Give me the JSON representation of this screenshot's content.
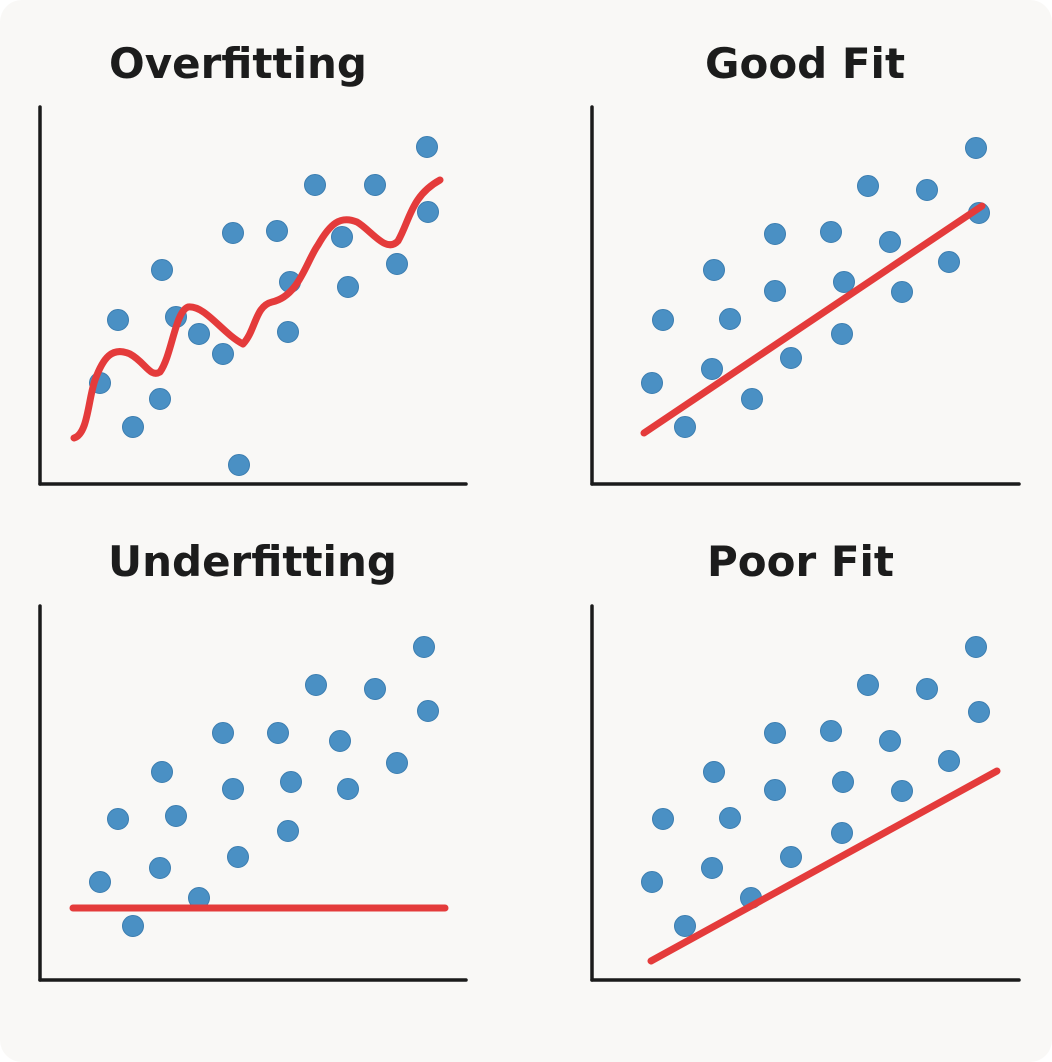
{
  "colors": {
    "background": "#f9f8f6",
    "axis": "#1b1b1b",
    "point_fill": "#4a90c4",
    "point_stroke": "#3b7db0",
    "fit_line": "#e43b3b"
  },
  "chart_data": [
    {
      "type": "scatter",
      "title": "Overfitting",
      "fit": "wiggly",
      "points": [
        [
          60,
          276
        ],
        [
          93,
          320
        ],
        [
          78,
          213
        ],
        [
          122,
          163
        ],
        [
          159,
          227
        ],
        [
          120,
          292
        ],
        [
          183,
          247
        ],
        [
          136,
          210
        ],
        [
          199,
          358
        ],
        [
          193,
          126
        ],
        [
          237,
          124
        ],
        [
          250,
          175
        ],
        [
          248,
          225
        ],
        [
          275,
          78
        ],
        [
          302,
          130
        ],
        [
          308,
          180
        ],
        [
          335,
          78
        ],
        [
          387,
          40
        ],
        [
          357,
          157
        ],
        [
          388,
          105
        ]
      ]
    },
    {
      "type": "scatter",
      "title": "Good Fit",
      "fit": "linear",
      "points": [
        [
          60,
          276
        ],
        [
          93,
          320
        ],
        [
          71,
          213
        ],
        [
          122,
          163
        ],
        [
          138,
          212
        ],
        [
          120,
          262
        ],
        [
          160,
          292
        ],
        [
          183,
          127
        ],
        [
          183,
          184
        ],
        [
          199,
          251
        ],
        [
          239,
          125
        ],
        [
          252,
          175
        ],
        [
          250,
          227
        ],
        [
          276,
          79
        ],
        [
          298,
          135
        ],
        [
          310,
          185
        ],
        [
          335,
          83
        ],
        [
          384,
          41
        ],
        [
          357,
          155
        ],
        [
          387,
          106
        ]
      ]
    },
    {
      "type": "scatter",
      "title": "Underfitting",
      "fit": "flat",
      "points": [
        [
          60,
          276
        ],
        [
          93,
          320
        ],
        [
          78,
          213
        ],
        [
          120,
          262
        ],
        [
          122,
          166
        ],
        [
          136,
          210
        ],
        [
          159,
          292
        ],
        [
          183,
          127
        ],
        [
          193,
          183
        ],
        [
          198,
          251
        ],
        [
          238,
          127
        ],
        [
          248,
          225
        ],
        [
          251,
          176
        ],
        [
          276,
          79
        ],
        [
          300,
          135
        ],
        [
          308,
          183
        ],
        [
          335,
          83
        ],
        [
          357,
          157
        ],
        [
          384,
          41
        ],
        [
          388,
          105
        ]
      ]
    },
    {
      "type": "scatter",
      "title": "Poor Fit",
      "fit": "offset-linear",
      "points": [
        [
          60,
          276
        ],
        [
          93,
          320
        ],
        [
          71,
          213
        ],
        [
          122,
          166
        ],
        [
          138,
          212
        ],
        [
          120,
          262
        ],
        [
          159,
          292
        ],
        [
          183,
          127
        ],
        [
          183,
          184
        ],
        [
          199,
          251
        ],
        [
          239,
          125
        ],
        [
          251,
          176
        ],
        [
          250,
          227
        ],
        [
          276,
          79
        ],
        [
          298,
          135
        ],
        [
          310,
          185
        ],
        [
          335,
          83
        ],
        [
          384,
          41
        ],
        [
          357,
          155
        ],
        [
          387,
          106
        ]
      ]
    }
  ]
}
